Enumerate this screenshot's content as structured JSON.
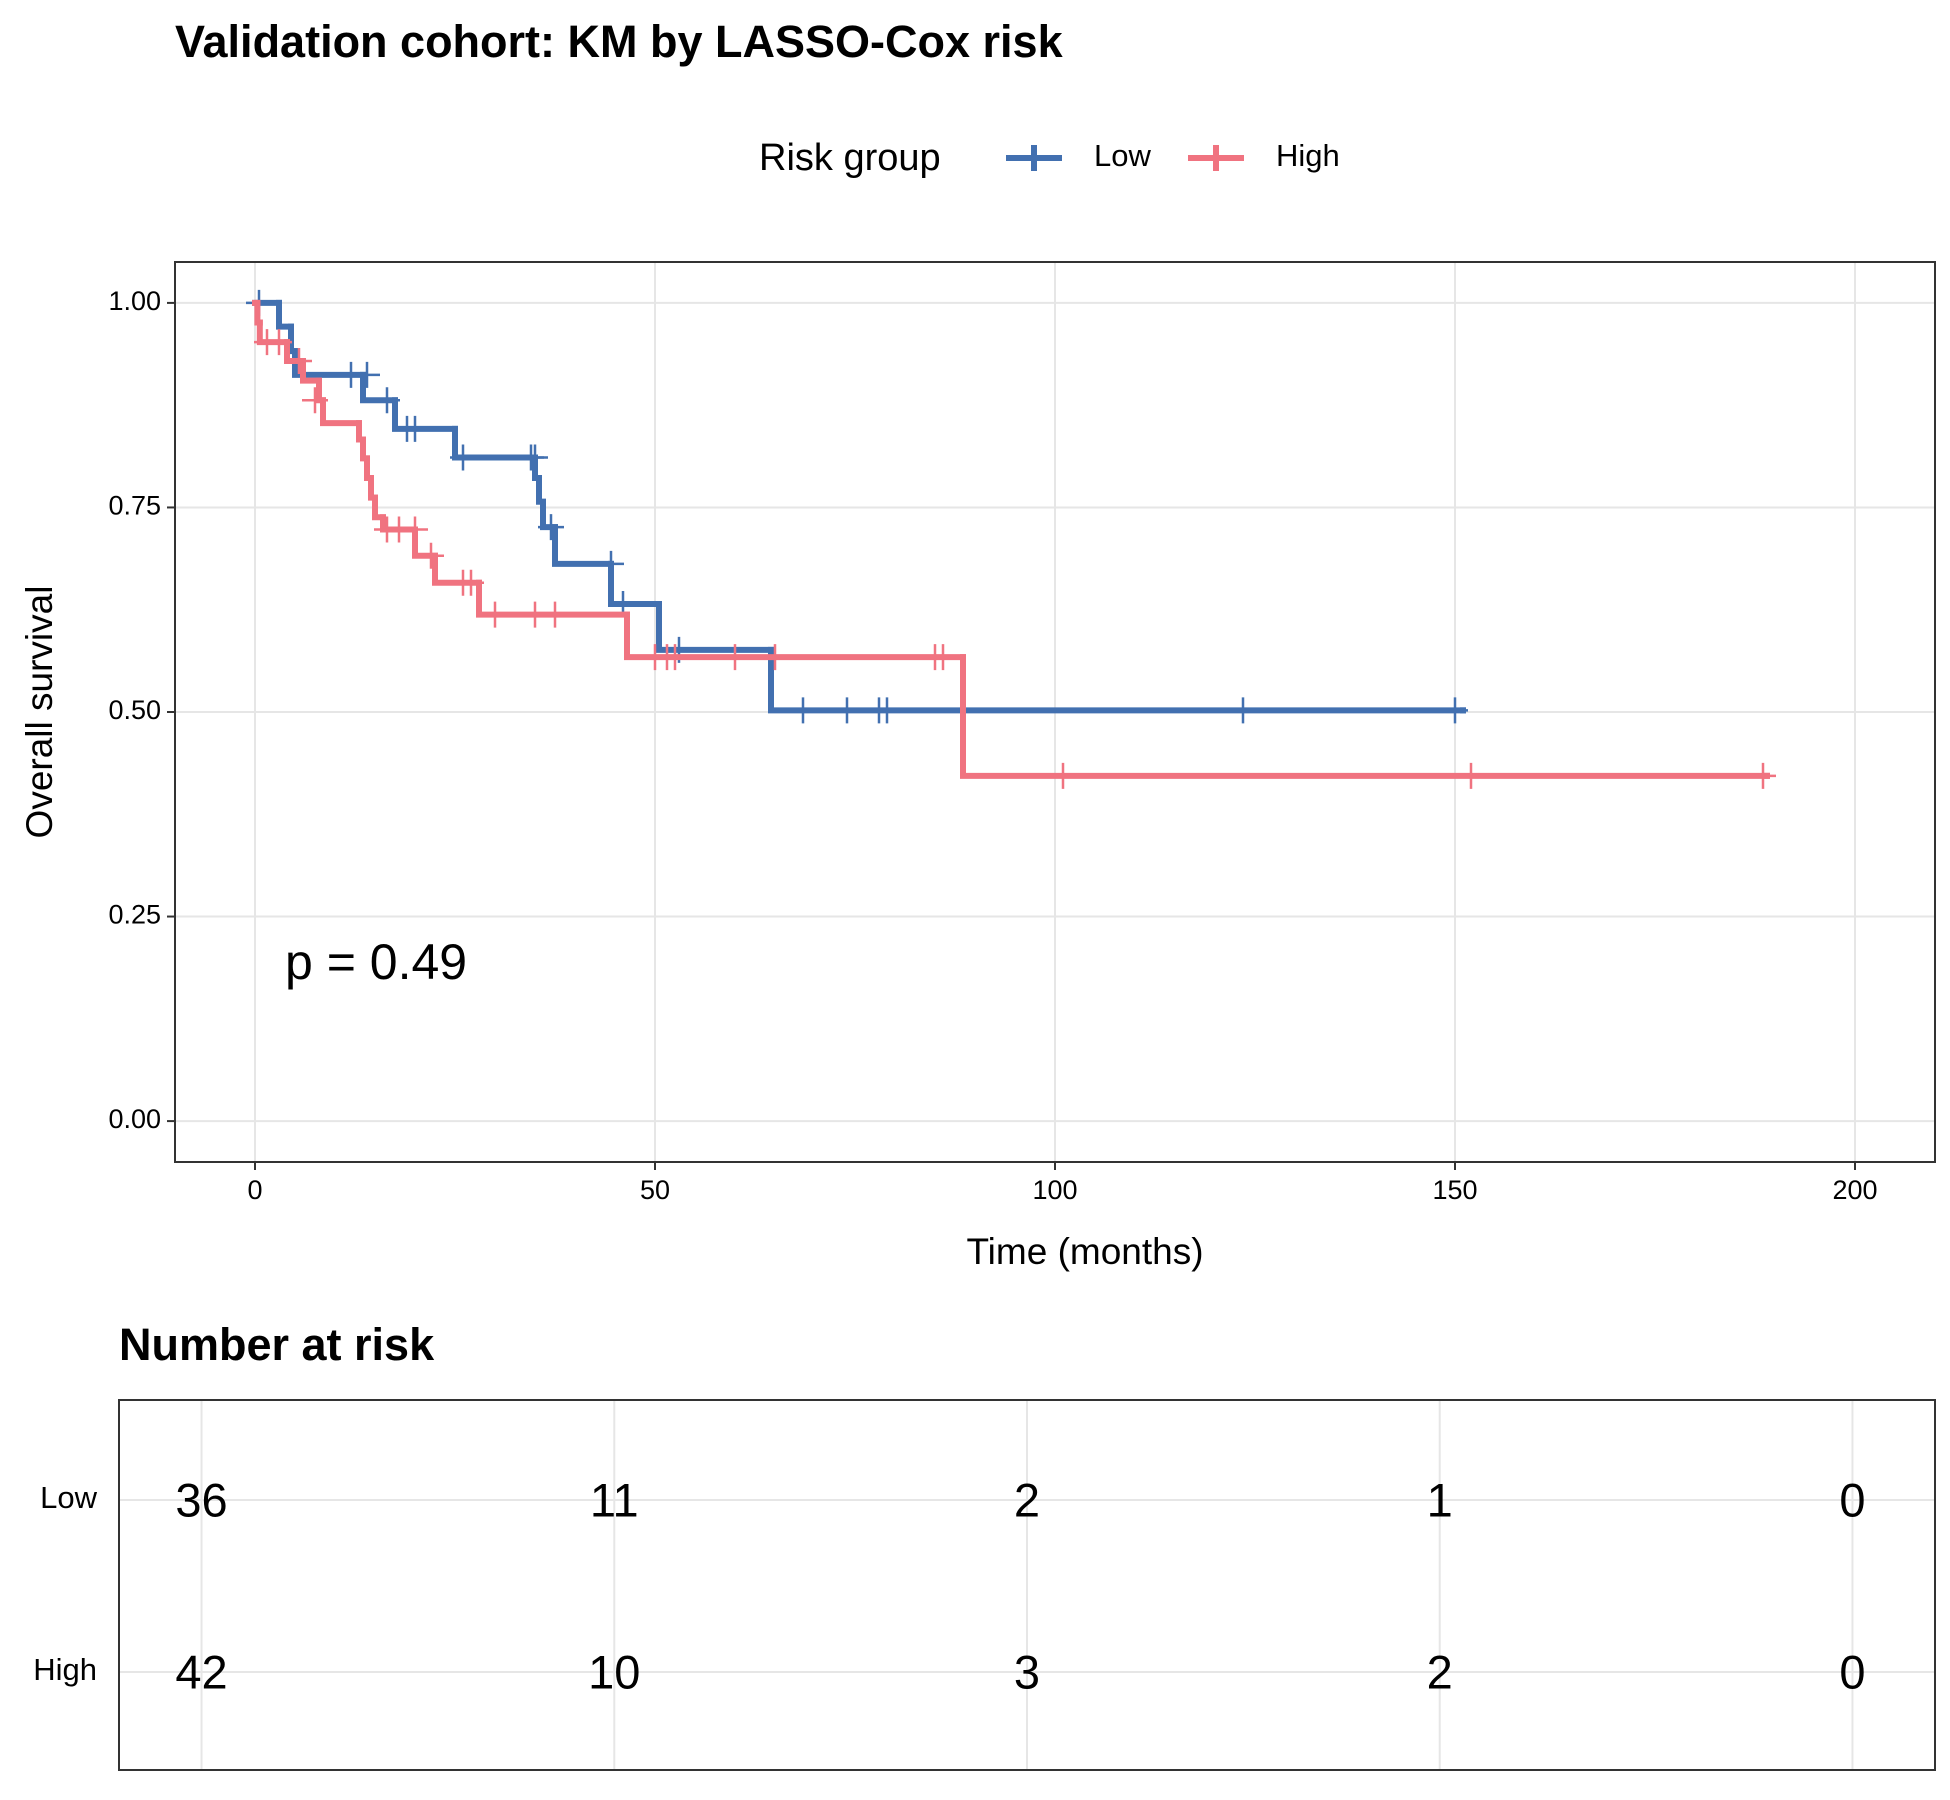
{
  "chart_data": {
    "type": "km",
    "title": "Validation cohort: KM by LASSO-Cox risk",
    "x_label": "Time (months)",
    "y_label": "Overall survival",
    "legend_title": "Risk group",
    "annotation": "p = 0.49",
    "xlim": [
      -10,
      210
    ],
    "xticks": [
      0,
      50,
      100,
      150,
      200
    ],
    "ylim": [
      -0.05,
      1.05
    ],
    "yticks": [
      {
        "value": 0,
        "label": "0.00"
      },
      {
        "value": 0.25,
        "label": "0.25"
      },
      {
        "value": 0.5,
        "label": "0.50"
      },
      {
        "value": 0.75,
        "label": "0.75"
      },
      {
        "value": 1,
        "label": "1.00"
      }
    ],
    "grid": true,
    "series": [
      {
        "name": "Low",
        "color": "#4270b0",
        "x": [
          0,
          3,
          4.5,
          5,
          13.5,
          17.5,
          25,
          35,
          35.5,
          36,
          37.5,
          44.5,
          50.5,
          64.5,
          151
        ],
        "values": [
          1,
          0.971,
          0.941,
          0.912,
          0.881,
          0.846,
          0.811,
          0.786,
          0.757,
          0.726,
          0.681,
          0.632,
          0.576,
          0.502,
          0.502
        ],
        "censor_x": [
          0.5,
          12,
          14,
          16.5,
          19,
          20,
          26,
          34.5,
          35,
          37,
          44.5,
          46,
          53,
          68.5,
          74,
          78,
          79,
          123.5,
          150
        ],
        "censor_values": [
          1,
          0.912,
          0.912,
          0.881,
          0.846,
          0.846,
          0.811,
          0.811,
          0.811,
          0.726,
          0.681,
          0.632,
          0.576,
          0.502,
          0.502,
          0.502,
          0.502,
          0.502,
          0.502
        ]
      },
      {
        "name": "High",
        "color": "#f07380",
        "x": [
          0,
          0.3,
          0.6,
          4,
          6,
          8,
          8.5,
          13,
          13.5,
          14,
          14.5,
          15,
          16,
          20,
          22.5,
          28,
          46.5,
          88.5,
          189
        ],
        "values": [
          1,
          0.976,
          0.952,
          0.929,
          0.905,
          0.881,
          0.853,
          0.833,
          0.81,
          0.786,
          0.762,
          0.738,
          0.723,
          0.691,
          0.658,
          0.619,
          0.567,
          0.422,
          0.422
        ],
        "censor_x": [
          1.5,
          3,
          5.5,
          7.5,
          16.5,
          18,
          20,
          22,
          26,
          27,
          30,
          35,
          37.5,
          50,
          51.5,
          52.5,
          60,
          65,
          85,
          86,
          101,
          152,
          188.5
        ],
        "censor_values": [
          0.952,
          0.952,
          0.929,
          0.881,
          0.723,
          0.723,
          0.723,
          0.691,
          0.658,
          0.658,
          0.619,
          0.619,
          0.619,
          0.567,
          0.567,
          0.567,
          0.567,
          0.567,
          0.567,
          0.567,
          0.422,
          0.422,
          0.422
        ]
      }
    ]
  },
  "risk_table": {
    "title": "Number at risk",
    "rows": [
      {
        "name": "Low",
        "color": "#4270b0",
        "values": [
          36,
          11,
          2,
          1,
          0
        ]
      },
      {
        "name": "High",
        "color": "#f07380",
        "values": [
          42,
          10,
          3,
          2,
          0
        ]
      }
    ]
  }
}
